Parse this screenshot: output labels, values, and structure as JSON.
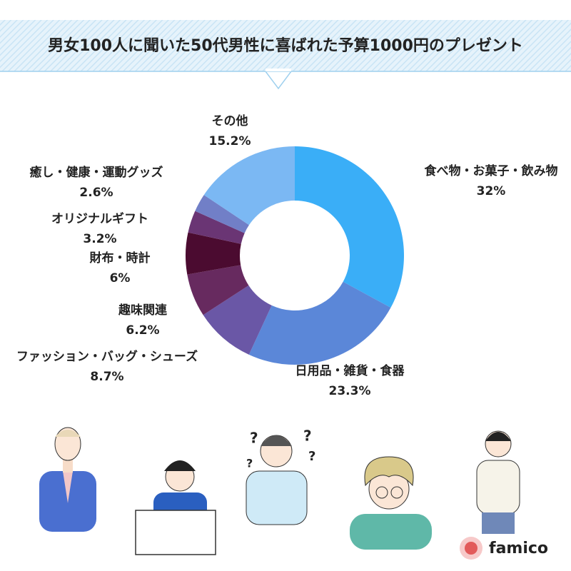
{
  "chart_data": {
    "type": "donut",
    "title": "男女100人に聞いた50代男性に喜ばれた予算1000円のプレゼント",
    "categories": [
      "食べ物・お菓子・飲み物",
      "日用品・雑貨・食器",
      "ファッション・バッグ・シューズ",
      "趣味関連",
      "財布・時計",
      "オリジナルギフト",
      "癒し・健康・運動グッズ",
      "その他"
    ],
    "values": [
      32,
      23.3,
      8.7,
      6.2,
      6,
      3.2,
      2.6,
      15.2
    ],
    "value_labels": [
      "32%",
      "23.3%",
      "8.7%",
      "6.2%",
      "6%",
      "3.2%",
      "2.6%",
      "15.2%"
    ],
    "colors": [
      "#3aaef7",
      "#5b87d8",
      "#6a57a6",
      "#672a5f",
      "#4b0b30",
      "#6a3574",
      "#717fc7",
      "#7bb8f3"
    ]
  },
  "logo": "famico"
}
